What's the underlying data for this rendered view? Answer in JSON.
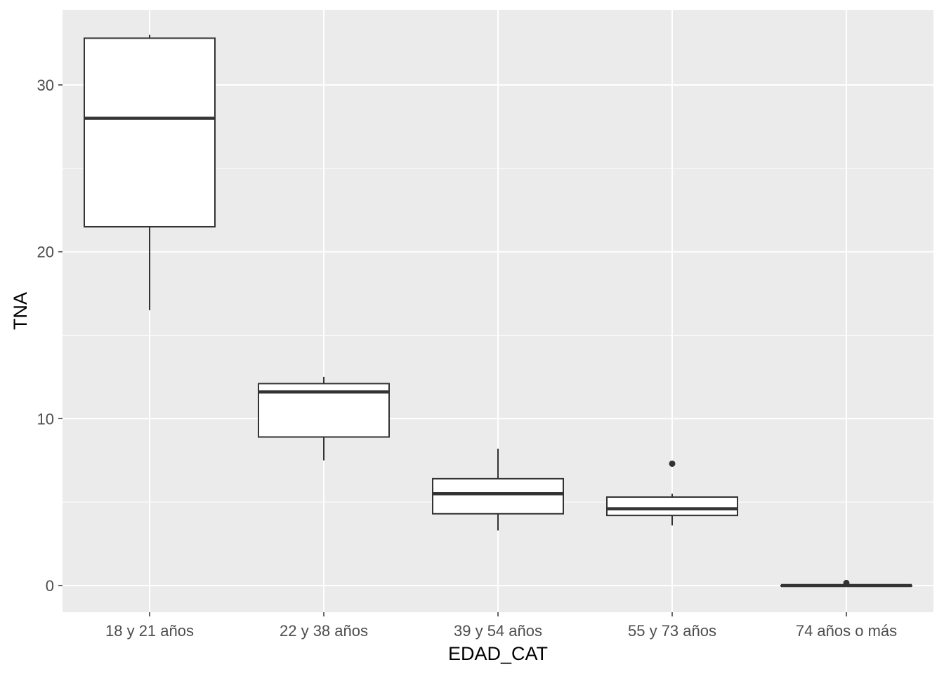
{
  "chart_data": {
    "type": "boxplot",
    "xlabel": "EDAD_CAT",
    "ylabel": "TNA",
    "ylim": [
      -1.6,
      34.5
    ],
    "y_ticks": [
      0,
      10,
      20,
      30
    ],
    "grid": true,
    "colors": {
      "panel": "#EBEBEB",
      "grid": "#FFFFFF",
      "box_fill": "#FFFFFF",
      "stroke": "#333333"
    },
    "categories": [
      "18 y 21 años",
      "22 y 38 años",
      "39 y 54 años",
      "55 y 73 años",
      "74 años o más"
    ],
    "boxes": [
      {
        "category": "18 y 21 años",
        "whisker_low": 16.5,
        "q1": 21.5,
        "median": 28.0,
        "q3": 32.8,
        "whisker_high": 33.0,
        "outliers": []
      },
      {
        "category": "22 y 38 años",
        "whisker_low": 7.5,
        "q1": 8.9,
        "median": 11.6,
        "q3": 12.1,
        "whisker_high": 12.5,
        "outliers": []
      },
      {
        "category": "39 y 54 años",
        "whisker_low": 3.3,
        "q1": 4.3,
        "median": 5.5,
        "q3": 6.4,
        "whisker_high": 8.2,
        "outliers": []
      },
      {
        "category": "55 y 73 años",
        "whisker_low": 3.6,
        "q1": 4.2,
        "median": 4.6,
        "q3": 5.3,
        "whisker_high": 5.5,
        "outliers": [
          7.3
        ]
      },
      {
        "category": "74 años o más",
        "whisker_low": 0.0,
        "q1": 0.0,
        "median": 0.0,
        "q3": 0.0,
        "whisker_high": 0.0,
        "outliers": [
          0.15
        ]
      }
    ]
  }
}
